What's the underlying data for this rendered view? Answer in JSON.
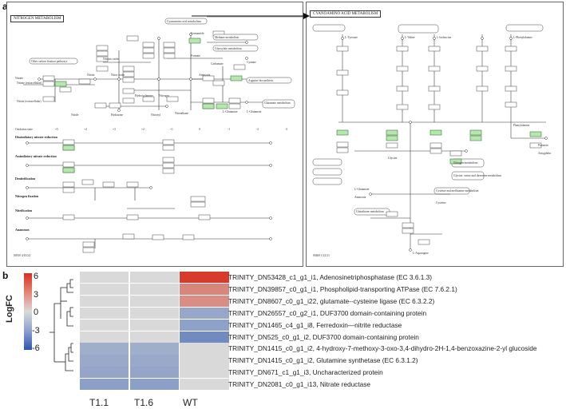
{
  "figure": {
    "panel_a": {
      "letter": "a",
      "map_left": {
        "title": "NITROGEN METABOLISM",
        "links": [
          "Cyanoamino acid metabolism",
          "Methane metabolism",
          "Glyoxylate metabolism",
          "Other carbon fixation pathways",
          "Arginine biosynthesis",
          "Glutamate metabolism"
        ],
        "compounds": [
          "Nitrate",
          "Nitrite",
          "Nitric oxide",
          "Nitrous oxide",
          "Nitrogen",
          "Ammonia",
          "Hydroxylamine",
          "Nitroxyl",
          "Formamide",
          "Formate",
          "Cyanate",
          "Carbamate",
          "L-Glutamine",
          "L-Glutamate",
          "Nitroalkane",
          "Hydrazine",
          "Nitrate (extracellular)",
          "Nitrite (extracellular)",
          "Nitrile"
        ],
        "oxidation_label": "Oxidation state",
        "oxidation_states": [
          "+5",
          "+4",
          "+3",
          "+2",
          "+1",
          "0",
          "-1",
          "-2",
          "-3"
        ],
        "modules": [
          "Dissimilatory nitrate reduction",
          "Assimilatory nitrate reduction",
          "Denitrification",
          "Nitrogen fixation",
          "Nitrification",
          "Anammox"
        ],
        "footer": "00910 4/10/24\n(c) Kanehisa Laboratories"
      },
      "map_right": {
        "title": "CYANOAMINO ACID METABOLISM",
        "compounds": [
          "L-Tyrosine",
          "L-Valine",
          "L-Isoleucine",
          "L-Phenylalanine",
          "Phenylalanine",
          "Nitrogen metabolism",
          "Glycine, serine and threonine metabolism",
          "Cysteine and methionine metabolism",
          "Glutathione metabolism",
          "L-Asparagine",
          "Amygdalin",
          "Prunasin",
          "L-Glutamate",
          "Ammonia",
          "Glycine",
          "Cysteine"
        ],
        "footer": "00460 1/22/21\n(c) Kanehisa Laboratories"
      }
    },
    "panel_b": {
      "letter": "b",
      "legend": {
        "title": "LogFC",
        "ticks": [
          "6",
          "3",
          "0",
          "-3",
          "-6"
        ],
        "colors": {
          "high": "#d7301f",
          "mid": "#d9d9d9",
          "low": "#2c57b0"
        }
      },
      "columns": [
        "T1.1",
        "T1.6",
        "WT"
      ],
      "rows": [
        {
          "label": "TRINITY_DN53428_c1_g1_i1, Adenosinetriphosphatase (EC 3.6.1.3)",
          "values": [
            0,
            0,
            5.6
          ]
        },
        {
          "label": "TRINITY_DN39857_c0_g1_i1, Phospholipid-transporting ATPase (EC 7.6.2.1)",
          "values": [
            0,
            0,
            3.0
          ]
        },
        {
          "label": "TRINITY_DN8607_c0_g1_i22, glutamate--cysteine ligase (EC 6.3.2.2)",
          "values": [
            0,
            0,
            2.7
          ]
        },
        {
          "label": "TRINITY_DN26557_c0_g2_i1, DUF3700 domain-containing protein",
          "values": [
            0,
            0,
            -2.3
          ]
        },
        {
          "label": "TRINITY_DN1465_c4_g1_i8, Ferredoxin—nitrite reductase",
          "values": [
            0,
            0,
            -2.6
          ]
        },
        {
          "label": "TRINITY_DN525_c0_g1_i2, DUF3700 domain-containing protein",
          "values": [
            0,
            0,
            -3.6
          ]
        },
        {
          "label": "TRINITY_DN1415_c0_g1_i2, 4-hydroxy-7-methoxy-3-oxo-3,4-dihydro-2H-1,4-benzoxazine-2-yl glucoside",
          "values": [
            -2.0,
            -2.0,
            0
          ]
        },
        {
          "label": "TRINITY_DN1415_c0_g1_i2, Glutamine synthetase (EC 6.3.1.2)",
          "values": [
            -2.2,
            -2.2,
            0
          ]
        },
        {
          "label": "TRINITY_DN671_c1_g1_i3, Uncharacterized protein",
          "values": [
            -2.4,
            -2.4,
            0
          ]
        },
        {
          "label": "TRINITY_DN2081_c0_g1_i13, Nitrate reductase",
          "values": [
            -2.7,
            -2.7,
            0
          ]
        }
      ]
    }
  }
}
